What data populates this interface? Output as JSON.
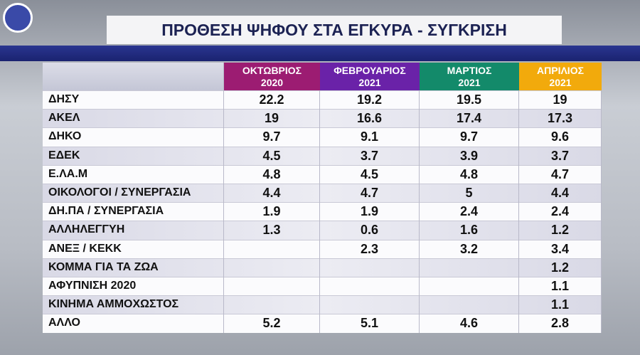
{
  "title": "ΠΡΟΘΕΣΗ ΨΗΦΟΥ ΣΤΑ ΕΓΚΥΡΑ - ΣΥΓΚΡΙΣΗ",
  "table": {
    "columns": [
      {
        "month": "ΟΚΤΩΒΡΙΟΣ",
        "year": "2020",
        "color": "#9c1c72"
      },
      {
        "month": "ΦΕΒΡΟΥΑΡΙΟΣ",
        "year": "2021",
        "color": "#6a22a8"
      },
      {
        "month": "ΜΑΡΤΙΟΣ",
        "year": "2021",
        "color": "#138a6a"
      },
      {
        "month": "ΑΠΡΙΛΙΟΣ",
        "year": "2021",
        "color": "#f2aa0c"
      }
    ],
    "rows": [
      {
        "label": "ΔΗΣΥ",
        "values": [
          22.2,
          19.2,
          19.5,
          19
        ]
      },
      {
        "label": "ΑΚΕΛ",
        "values": [
          19,
          16.6,
          17.4,
          17.3
        ]
      },
      {
        "label": "ΔΗΚΟ",
        "values": [
          9.7,
          9.1,
          9.7,
          9.6
        ]
      },
      {
        "label": "ΕΔΕΚ",
        "values": [
          4.5,
          3.7,
          3.9,
          3.7
        ]
      },
      {
        "label": "Ε.ΛΑ.Μ",
        "values": [
          4.8,
          4.5,
          4.8,
          4.7
        ]
      },
      {
        "label": "ΟΙΚΟΛΟΓΟΙ / ΣΥΝΕΡΓΑΣΙΑ",
        "values": [
          4.4,
          4.7,
          5,
          4.4
        ]
      },
      {
        "label": "ΔΗ.ΠΑ / ΣΥΝΕΡΓΑΣΙΑ",
        "values": [
          1.9,
          1.9,
          2.4,
          2.4
        ]
      },
      {
        "label": "ΑΛΛΗΛΕΓΓΥΗ",
        "values": [
          1.3,
          0.6,
          1.6,
          1.2
        ]
      },
      {
        "label": "ΑΝΕΞ / ΚΕΚΚ",
        "values": [
          null,
          2.3,
          3.2,
          3.4
        ]
      },
      {
        "label": "ΚΟΜΜΑ ΓΙΑ ΤΑ ΖΩΑ",
        "values": [
          null,
          null,
          null,
          1.2
        ]
      },
      {
        "label": "ΑΦΥΠΝΙΣΗ 2020",
        "values": [
          null,
          null,
          null,
          1.1
        ]
      },
      {
        "label": "ΚΙΝΗΜΑ ΑΜΜΟΧΩΣΤΟΣ",
        "values": [
          null,
          null,
          null,
          1.1
        ]
      },
      {
        "label": "ΑΛΛΟ",
        "values": [
          5.2,
          5.1,
          4.6,
          2.8
        ]
      }
    ]
  }
}
